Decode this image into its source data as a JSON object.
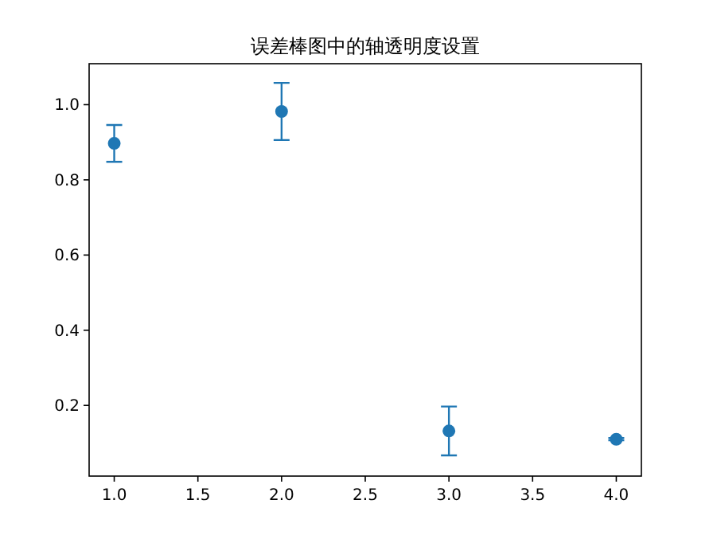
{
  "chart_data": {
    "type": "scatter",
    "title": "误差棒图中的轴透明度设置",
    "x": [
      1,
      2,
      3,
      4
    ],
    "series": [
      {
        "color": "#1f77b4",
        "values": [
          0.897,
          0.982,
          0.132,
          0.11
        ],
        "errors": [
          0.049,
          0.076,
          0.065,
          0.003
        ]
      }
    ],
    "xlim": [
      0.85,
      4.15
    ],
    "ylim": [
      0.012,
      1.109
    ],
    "xticks": [
      {
        "value": 1,
        "label": "1.0"
      },
      {
        "value": 1.5,
        "label": "1.5"
      },
      {
        "value": 2,
        "label": "2.0"
      },
      {
        "value": 2.5,
        "label": "2.5"
      },
      {
        "value": 3,
        "label": "3.0"
      },
      {
        "value": 3.5,
        "label": "3.5"
      },
      {
        "value": 4,
        "label": "4.0"
      }
    ],
    "yticks": [
      {
        "value": 0.2,
        "label": "0.2"
      },
      {
        "value": 0.4,
        "label": "0.4"
      },
      {
        "value": 0.6,
        "label": "0.6"
      },
      {
        "value": 0.8,
        "label": "0.8"
      },
      {
        "value": 1,
        "label": "1.0"
      }
    ],
    "marker": "circle",
    "grid": false
  }
}
